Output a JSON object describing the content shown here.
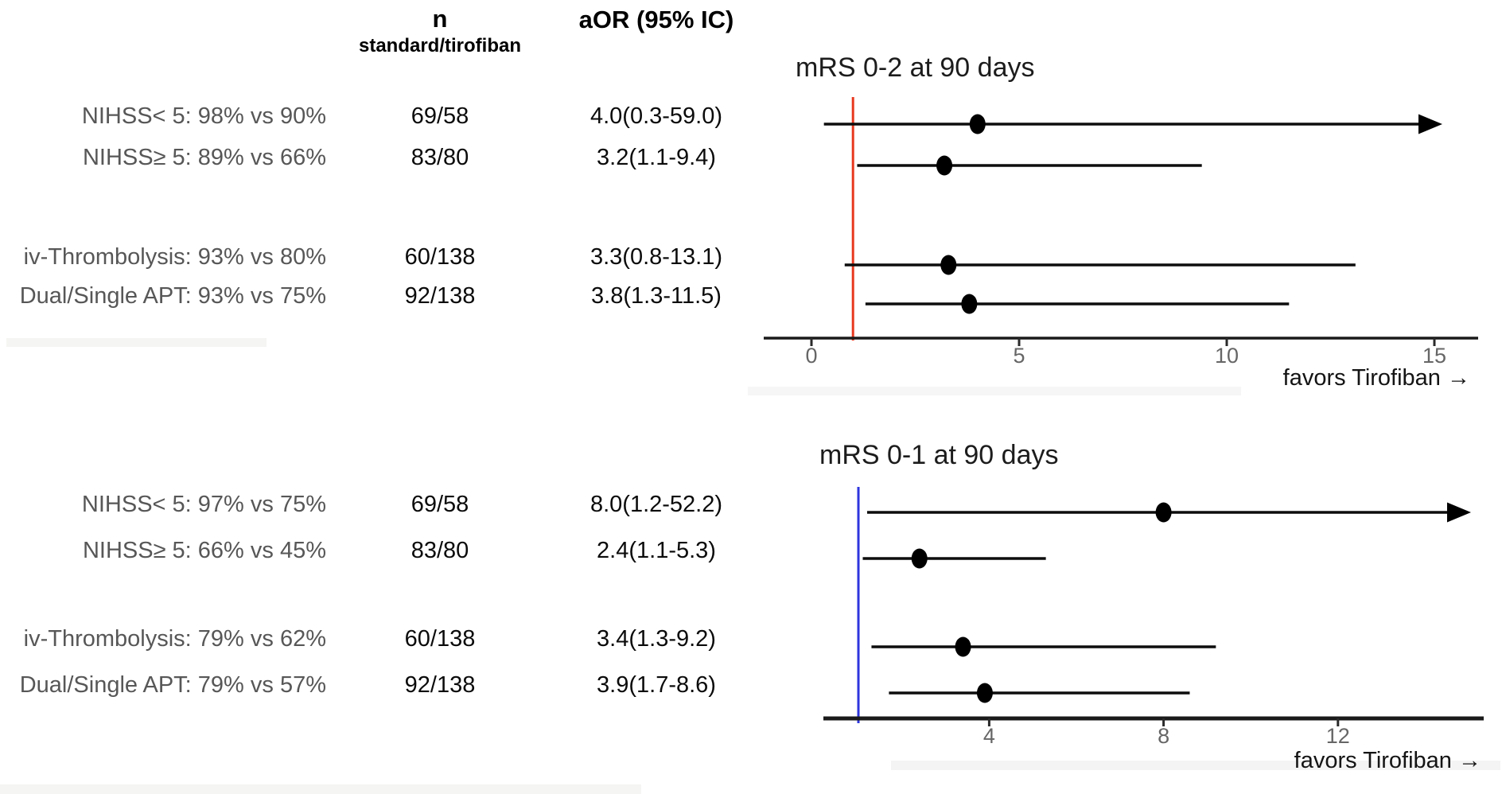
{
  "table": {
    "headers": {
      "n": "n",
      "n_sub": "standard/tirofiban",
      "aor": "aOR (95% IC)"
    }
  },
  "chart_data": [
    {
      "type": "forest",
      "title": "mRS 0-2 at 90 days",
      "favors_label": "favors Tirofiban →",
      "reference_value": 1,
      "reference_color": "#e8381f",
      "x_ticks": [
        0,
        5,
        10,
        15
      ],
      "x_axis_range": [
        -1.1,
        16.1
      ],
      "rows": [
        {
          "label": "NIHSS< 5: 98% vs 90%",
          "n": "69/58",
          "aor": "4.0(0.3-59.0)",
          "or": 4.0,
          "ci_low": 0.3,
          "ci_high": 59.0,
          "ci_high_clipped": true
        },
        {
          "label": "NIHSS≥ 5: 89% vs 66%",
          "n": "83/80",
          "aor": "3.2(1.1-9.4)",
          "or": 3.2,
          "ci_low": 1.1,
          "ci_high": 9.4,
          "ci_high_clipped": false
        },
        {
          "label": "iv-Thrombolysis: 93% vs 80%",
          "n": "60/138",
          "aor": "3.3(0.8-13.1)",
          "or": 3.3,
          "ci_low": 0.8,
          "ci_high": 13.1,
          "ci_high_clipped": false
        },
        {
          "label": "Dual/Single APT: 93% vs 75%",
          "n": "92/138",
          "aor": "3.8(1.3-11.5)",
          "or": 3.8,
          "ci_low": 1.3,
          "ci_high": 11.5,
          "ci_high_clipped": false
        }
      ]
    },
    {
      "type": "forest",
      "title": "mRS 0-1 at 90 days",
      "favors_label": "favors Tirofiban →",
      "reference_value": 1,
      "reference_color": "#2d35dd",
      "x_ticks": [
        4,
        8,
        12
      ],
      "x_axis_range": [
        0.2,
        15.3
      ],
      "rows": [
        {
          "label": "NIHSS< 5: 97% vs 75%",
          "n": "69/58",
          "aor": "8.0(1.2-52.2)",
          "or": 8.0,
          "ci_low": 1.2,
          "ci_high": 52.2,
          "ci_high_clipped": true
        },
        {
          "label": "NIHSS≥ 5: 66% vs 45%",
          "n": "83/80",
          "aor": "2.4(1.1-5.3)",
          "or": 2.4,
          "ci_low": 1.1,
          "ci_high": 5.3,
          "ci_high_clipped": false
        },
        {
          "label": "iv-Thrombolysis: 79% vs 62%",
          "n": "60/138",
          "aor": "3.4(1.3-9.2)",
          "or": 3.4,
          "ci_low": 1.3,
          "ci_high": 9.2,
          "ci_high_clipped": false
        },
        {
          "label": "Dual/Single APT: 79% vs 57%",
          "n": "92/138",
          "aor": "3.9(1.7-8.6)",
          "or": 3.9,
          "ci_low": 1.7,
          "ci_high": 8.6,
          "ci_high_clipped": false
        }
      ]
    }
  ],
  "colors": {
    "marker": "#000000",
    "ci_line": "#0d0d0d",
    "axis": "#1a1a1a",
    "tick_label": "#666666",
    "row_label": "#575757",
    "value_text": "#0b0b0b",
    "reference_top": "#e8381f",
    "reference_bottom": "#2d35dd"
  }
}
